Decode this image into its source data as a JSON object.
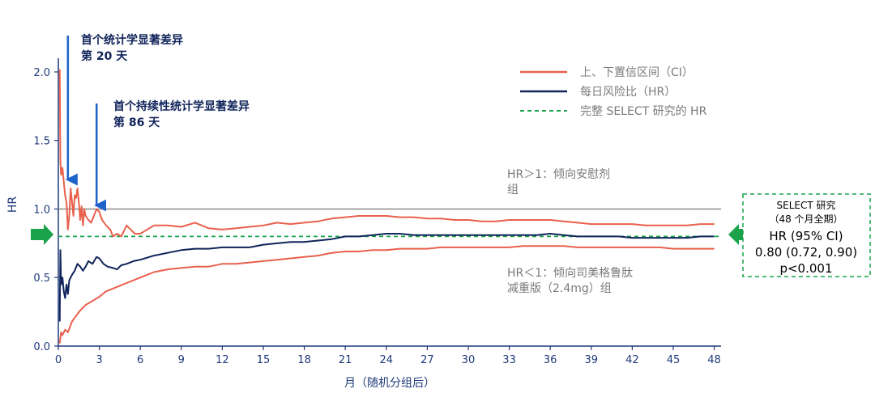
{
  "colors": {
    "ci": "#e8604c",
    "hr": "#10235a",
    "overall": "#16a34a",
    "reference": "#8a8a8a",
    "axis": "#1f3a7a",
    "arrow_blue": "#1e63c9",
    "arrow_green": "#1aa34a"
  },
  "chart_data": {
    "type": "line",
    "xlabel": "月（随机分组后）",
    "ylabel": "HR",
    "xlim": [
      0,
      48.5
    ],
    "ylim": [
      0,
      2.1
    ],
    "xticks": [
      0,
      3,
      6,
      9,
      12,
      15,
      18,
      21,
      24,
      27,
      30,
      33,
      36,
      39,
      42,
      45,
      48
    ],
    "yticks": [
      0.0,
      0.5,
      1.0,
      1.5,
      2.0
    ],
    "ytick_labels": [
      "0.0",
      "0.5",
      "1.0",
      "1.5",
      "2.0"
    ],
    "legend_position": "top-right",
    "legend": [
      {
        "label": "上、下置信区间（CI）",
        "style": "ci"
      },
      {
        "label": "每日风险比（HR）",
        "style": "hr"
      },
      {
        "label": "完整 SELECT 研究的 HR",
        "style": "overall"
      }
    ],
    "reference_line": 1.0,
    "overall_hr": 0.8,
    "series": [
      {
        "key": "upper",
        "x": [
          0.1,
          0.15,
          0.2,
          0.3,
          0.4,
          0.5,
          0.6,
          0.7,
          0.8,
          0.9,
          1.0,
          1.1,
          1.2,
          1.3,
          1.4,
          1.5,
          1.6,
          1.7,
          1.8,
          1.9,
          2.0,
          2.2,
          2.4,
          2.6,
          2.8,
          3.0,
          3.2,
          3.5,
          3.8,
          4.0,
          4.3,
          4.6,
          5.0,
          5.3,
          5.6,
          6.0,
          7,
          8,
          9,
          10,
          11,
          12,
          13,
          14,
          15,
          16,
          17,
          18,
          19,
          20,
          21,
          22,
          23,
          24,
          25,
          26,
          27,
          28,
          29,
          30,
          31,
          32,
          33,
          34,
          35,
          36,
          37,
          38,
          39,
          40,
          41,
          42,
          43,
          44,
          45,
          46,
          47,
          48
        ],
        "y": [
          2.02,
          1.35,
          1.25,
          1.3,
          1.2,
          1.1,
          1.05,
          0.85,
          0.95,
          1.15,
          1.05,
          0.95,
          1.1,
          1.08,
          1.15,
          1.05,
          0.92,
          1.02,
          0.88,
          1.0,
          0.95,
          0.92,
          0.9,
          0.95,
          1.0,
          0.98,
          0.92,
          0.88,
          0.85,
          0.8,
          0.82,
          0.8,
          0.88,
          0.85,
          0.82,
          0.82,
          0.88,
          0.88,
          0.87,
          0.9,
          0.86,
          0.85,
          0.86,
          0.87,
          0.88,
          0.9,
          0.89,
          0.9,
          0.91,
          0.93,
          0.94,
          0.95,
          0.95,
          0.95,
          0.94,
          0.94,
          0.93,
          0.93,
          0.92,
          0.92,
          0.91,
          0.91,
          0.92,
          0.92,
          0.92,
          0.92,
          0.91,
          0.9,
          0.89,
          0.89,
          0.89,
          0.89,
          0.88,
          0.88,
          0.88,
          0.88,
          0.89,
          0.89
        ]
      },
      {
        "key": "hr",
        "x": [
          0.1,
          0.15,
          0.2,
          0.3,
          0.4,
          0.5,
          0.6,
          0.7,
          0.8,
          0.9,
          1.0,
          1.2,
          1.4,
          1.6,
          1.8,
          2.0,
          2.2,
          2.5,
          2.8,
          3.0,
          3.3,
          3.6,
          4.0,
          4.3,
          4.6,
          5.0,
          5.5,
          6,
          7,
          8,
          9,
          10,
          11,
          12,
          13,
          14,
          15,
          16,
          17,
          18,
          19,
          20,
          21,
          22,
          23,
          24,
          25,
          26,
          27,
          28,
          29,
          30,
          31,
          32,
          33,
          34,
          35,
          36,
          37,
          38,
          39,
          40,
          41,
          42,
          43,
          44,
          45,
          46,
          47,
          48
        ],
        "y": [
          0.18,
          0.7,
          0.45,
          0.5,
          0.4,
          0.35,
          0.45,
          0.38,
          0.48,
          0.5,
          0.52,
          0.55,
          0.6,
          0.58,
          0.55,
          0.58,
          0.62,
          0.6,
          0.65,
          0.64,
          0.6,
          0.58,
          0.57,
          0.56,
          0.59,
          0.6,
          0.62,
          0.63,
          0.66,
          0.68,
          0.7,
          0.71,
          0.71,
          0.72,
          0.72,
          0.72,
          0.74,
          0.75,
          0.76,
          0.76,
          0.77,
          0.78,
          0.8,
          0.8,
          0.81,
          0.82,
          0.82,
          0.81,
          0.81,
          0.81,
          0.81,
          0.81,
          0.81,
          0.81,
          0.81,
          0.81,
          0.81,
          0.82,
          0.81,
          0.8,
          0.8,
          0.8,
          0.8,
          0.79,
          0.79,
          0.79,
          0.79,
          0.79,
          0.8,
          0.8
        ]
      },
      {
        "key": "lower",
        "x": [
          0.1,
          0.2,
          0.3,
          0.5,
          0.7,
          1.0,
          1.3,
          1.6,
          2.0,
          2.5,
          3.0,
          3.5,
          4.0,
          4.5,
          5.0,
          5.5,
          6,
          7,
          8,
          9,
          10,
          11,
          12,
          13,
          14,
          15,
          16,
          17,
          18,
          19,
          20,
          21,
          22,
          23,
          24,
          25,
          26,
          27,
          28,
          29,
          30,
          31,
          32,
          33,
          34,
          35,
          36,
          37,
          38,
          39,
          40,
          41,
          42,
          43,
          44,
          45,
          46,
          47,
          48
        ],
        "y": [
          0.02,
          0.1,
          0.08,
          0.12,
          0.1,
          0.18,
          0.22,
          0.26,
          0.3,
          0.33,
          0.36,
          0.4,
          0.42,
          0.44,
          0.46,
          0.48,
          0.5,
          0.54,
          0.56,
          0.57,
          0.58,
          0.58,
          0.6,
          0.6,
          0.61,
          0.62,
          0.63,
          0.64,
          0.65,
          0.66,
          0.68,
          0.69,
          0.69,
          0.7,
          0.7,
          0.71,
          0.71,
          0.71,
          0.72,
          0.72,
          0.72,
          0.72,
          0.72,
          0.72,
          0.73,
          0.73,
          0.73,
          0.73,
          0.72,
          0.72,
          0.72,
          0.72,
          0.72,
          0.72,
          0.72,
          0.71,
          0.71,
          0.71,
          0.71
        ]
      }
    ]
  },
  "annotations": {
    "first_sig_line1": "首个统计学显著差异",
    "first_sig_line2": "第 20 天",
    "first_sig_month": 0.7,
    "persist_sig_line1": "首个持续性统计学显著差异",
    "persist_sig_line2": "第 86 天",
    "persist_sig_month": 2.8,
    "hr_gt1_line1": "HR＞1：倾向安慰剂",
    "hr_gt1_line2": "组",
    "hr_lt1_line1": "HR＜1：倾向司美格鲁肽",
    "hr_lt1_line2": "减重版（2.4mg）组"
  },
  "select_box": {
    "title": "SELECT 研究",
    "subtitle": "（48 个月全期）",
    "hr_label": "HR (95% CI)",
    "hr_value": "0.80 (0.72, 0.90)",
    "p_value": "p<0.001"
  }
}
